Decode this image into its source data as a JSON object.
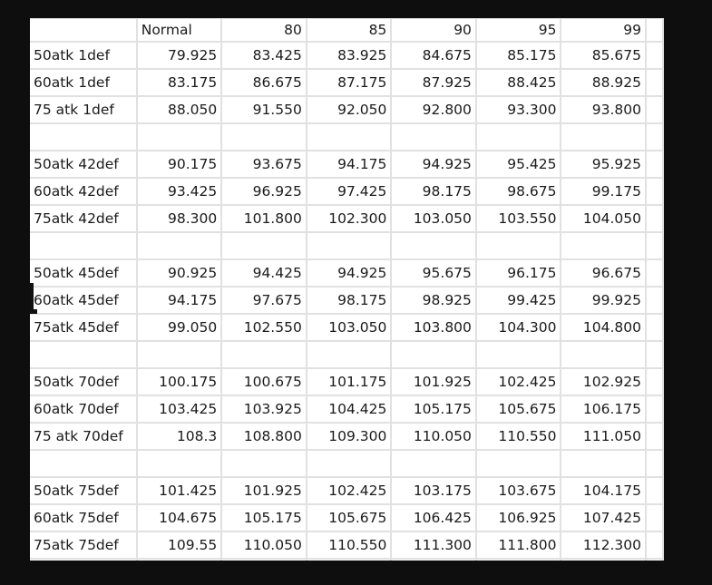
{
  "columns": [
    "",
    "Normal",
    "80",
    "85",
    "90",
    "95",
    "99"
  ],
  "rows": [
    {
      "label": "50atk 1def",
      "values": [
        "79.925",
        "83.425",
        "83.925",
        "84.675",
        "85.175",
        "85.675"
      ]
    },
    {
      "label": "60atk 1def",
      "values": [
        "83.175",
        "86.675",
        "87.175",
        "87.925",
        "88.425",
        "88.925"
      ]
    },
    {
      "label": "75 atk 1def",
      "values": [
        "88.050",
        "91.550",
        "92.050",
        "92.800",
        "93.300",
        "93.800"
      ]
    },
    {
      "label": "",
      "values": [
        "",
        "",
        "",
        "",
        "",
        ""
      ]
    },
    {
      "label": "50atk 42def",
      "values": [
        "90.175",
        "93.675",
        "94.175",
        "94.925",
        "95.425",
        "95.925"
      ]
    },
    {
      "label": "60atk 42def",
      "values": [
        "93.425",
        "96.925",
        "97.425",
        "98.175",
        "98.675",
        "99.175"
      ]
    },
    {
      "label": "75atk 42def",
      "values": [
        "98.300",
        "101.800",
        "102.300",
        "103.050",
        "103.550",
        "104.050"
      ]
    },
    {
      "label": "",
      "values": [
        "",
        "",
        "",
        "",
        "",
        ""
      ]
    },
    {
      "label": "50atk 45def",
      "values": [
        "90.925",
        "94.425",
        "94.925",
        "95.675",
        "96.175",
        "96.675"
      ]
    },
    {
      "label": "60atk 45def",
      "values": [
        "94.175",
        "97.675",
        "98.175",
        "98.925",
        "99.425",
        "99.925"
      ]
    },
    {
      "label": "75atk 45def",
      "values": [
        "99.050",
        "102.550",
        "103.050",
        "103.800",
        "104.300",
        "104.800"
      ]
    },
    {
      "label": "",
      "values": [
        "",
        "",
        "",
        "",
        "",
        ""
      ]
    },
    {
      "label": "50atk 70def",
      "values": [
        "100.175",
        "100.675",
        "101.175",
        "101.925",
        "102.425",
        "102.925"
      ]
    },
    {
      "label": "60atk 70def",
      "values": [
        "103.425",
        "103.925",
        "104.425",
        "105.175",
        "105.675",
        "106.175"
      ]
    },
    {
      "label": "75 atk 70def",
      "values": [
        "108.3",
        "108.800",
        "109.300",
        "110.050",
        "110.550",
        "111.050"
      ]
    },
    {
      "label": "",
      "values": [
        "",
        "",
        "",
        "",
        "",
        ""
      ]
    },
    {
      "label": "50atk 75def",
      "values": [
        "101.425",
        "101.925",
        "102.425",
        "103.175",
        "103.675",
        "104.175"
      ]
    },
    {
      "label": "60atk 75def",
      "values": [
        "104.675",
        "105.175",
        "105.675",
        "106.425",
        "106.925",
        "107.425"
      ]
    },
    {
      "label": "75atk 75def",
      "values": [
        "109.55",
        "110.050",
        "110.550",
        "111.300",
        "111.800",
        "112.300"
      ]
    },
    {
      "label": "",
      "values": [
        "",
        "",
        "",
        "",
        "",
        ""
      ]
    }
  ]
}
